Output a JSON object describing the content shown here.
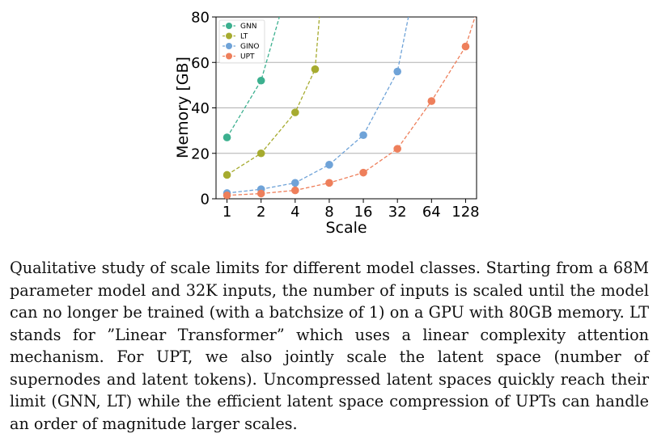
{
  "chart_data": {
    "type": "line",
    "xlabel": "Scale",
    "ylabel": "Memory [GB]",
    "x_scale": "log2",
    "x_ticks": [
      1,
      2,
      4,
      8,
      16,
      32,
      64,
      128
    ],
    "x_tick_labels": [
      "1",
      "2",
      "4",
      "8",
      "16",
      "32",
      "64",
      "128"
    ],
    "xlim": [
      0.8,
      160
    ],
    "ylim": [
      0,
      80
    ],
    "y_ticks": [
      0,
      20,
      40,
      60,
      80
    ],
    "y_tick_labels": [
      "0",
      "20",
      "40",
      "60",
      "80"
    ],
    "grid": "horizontal",
    "legend_position": "top-left",
    "series": [
      {
        "name": "GNN",
        "color": "#3cb08f",
        "points": [
          [
            1,
            27
          ],
          [
            2,
            52
          ]
        ],
        "trend": [
          [
            1,
            27
          ],
          [
            2,
            52
          ],
          [
            2.9,
            80
          ]
        ]
      },
      {
        "name": "LT",
        "color": "#a6ab2f",
        "points": [
          [
            1,
            10.5
          ],
          [
            2,
            20
          ],
          [
            4,
            38
          ],
          [
            6,
            57
          ]
        ],
        "trend": [
          [
            1,
            10.5
          ],
          [
            2,
            20
          ],
          [
            4,
            38
          ],
          [
            6,
            57
          ],
          [
            6.55,
            80
          ]
        ]
      },
      {
        "name": "GINO",
        "color": "#6fa3d8",
        "points": [
          [
            1,
            2.5
          ],
          [
            2,
            4.2
          ],
          [
            4,
            7
          ],
          [
            8,
            15
          ],
          [
            16,
            28
          ],
          [
            32,
            56
          ]
        ],
        "trend": [
          [
            1,
            2.5
          ],
          [
            2,
            4.2
          ],
          [
            4,
            7
          ],
          [
            8,
            15
          ],
          [
            16,
            28
          ],
          [
            32,
            56
          ],
          [
            40,
            80
          ]
        ]
      },
      {
        "name": "UPT",
        "color": "#ee7f5b",
        "points": [
          [
            1,
            1.5
          ],
          [
            2,
            2.3
          ],
          [
            4,
            3.7
          ],
          [
            8,
            7
          ],
          [
            16,
            11.5
          ],
          [
            32,
            22
          ],
          [
            64,
            43
          ],
          [
            128,
            67
          ]
        ],
        "trend": [
          [
            1,
            1.5
          ],
          [
            2,
            2.3
          ],
          [
            4,
            3.7
          ],
          [
            8,
            7
          ],
          [
            16,
            11.5
          ],
          [
            32,
            22
          ],
          [
            64,
            43
          ],
          [
            128,
            67
          ],
          [
            155,
            80
          ]
        ]
      }
    ]
  },
  "caption": "Qualitative study of scale limits for different model classes. Starting from a 68M parameter model and 32K inputs, the number of inputs is scaled until the model can no longer be trained (with a batchsize of 1) on a GPU with 80GB memory. LT stands for ”Linear Transformer” which uses a linear complexity attention mechanism. For UPT, we also jointly scale the latent space (number of supernodes and latent tokens). Uncompressed latent spaces quickly reach their limit (GNN, LT) while the efficient latent space compression of UPTs can handle an order of magnitude larger scales."
}
